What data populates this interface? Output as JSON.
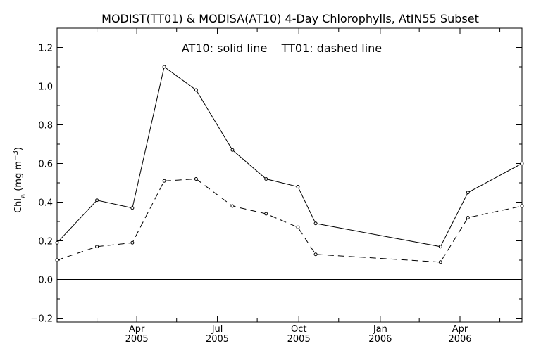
{
  "chart_data": {
    "type": "line",
    "title": "MODIST(TT01) & MODISA(AT10) 4-Day Chlorophylls, AtIN55 Subset",
    "annotation": "AT10: solid line    TT01: dashed line",
    "ylabel": "Chl_a (mg m^-3)",
    "ylabel_parts": {
      "main": "Chl",
      "sub": "a",
      "unit_open": " (mg m",
      "sup": "−3",
      "unit_close": ")"
    },
    "ylim": [
      -0.22,
      1.3
    ],
    "xlim": [
      "2005-01-01",
      "2006-06-10"
    ],
    "grid": false,
    "y_ticks": [
      {
        "value": -0.2,
        "label": "−0.2"
      },
      {
        "value": 0.0,
        "label": "0.0"
      },
      {
        "value": 0.2,
        "label": "0.2"
      },
      {
        "value": 0.4,
        "label": "0.4"
      },
      {
        "value": 0.6,
        "label": "0.6"
      },
      {
        "value": 0.8,
        "label": "0.8"
      },
      {
        "value": 1.0,
        "label": "1.0"
      },
      {
        "value": 1.2,
        "label": "1.2"
      }
    ],
    "x_major_ticks": [
      {
        "date": "2005-04-01",
        "label1": "Apr",
        "label2": "2005"
      },
      {
        "date": "2005-07-01",
        "label1": "Jul",
        "label2": "2005"
      },
      {
        "date": "2005-10-01",
        "label1": "Oct",
        "label2": "2005"
      },
      {
        "date": "2006-01-01",
        "label1": "Jan",
        "label2": "2006"
      },
      {
        "date": "2006-04-01",
        "label1": "Apr",
        "label2": "2006"
      }
    ],
    "x_minor_ticks": [
      "2005-02-15",
      "2005-05-16",
      "2005-08-15",
      "2005-11-15",
      "2006-02-14",
      "2006-05-16"
    ],
    "zero_line": 0.0,
    "series": [
      {
        "name": "AT10",
        "style": "solid",
        "color": "#000000",
        "points": [
          {
            "x": "2005-01-01",
            "y": 0.19
          },
          {
            "x": "2005-02-15",
            "y": 0.41
          },
          {
            "x": "2005-03-27",
            "y": 0.37
          },
          {
            "x": "2005-05-02",
            "y": 1.1
          },
          {
            "x": "2005-06-07",
            "y": 0.98
          },
          {
            "x": "2005-07-18",
            "y": 0.67
          },
          {
            "x": "2005-08-25",
            "y": 0.52
          },
          {
            "x": "2005-09-30",
            "y": 0.48
          },
          {
            "x": "2005-10-20",
            "y": 0.29
          },
          {
            "x": "2006-03-10",
            "y": 0.17
          },
          {
            "x": "2006-04-10",
            "y": 0.45
          },
          {
            "x": "2006-06-10",
            "y": 0.6
          }
        ]
      },
      {
        "name": "TT01",
        "style": "dashed",
        "color": "#000000",
        "points": [
          {
            "x": "2005-01-01",
            "y": 0.1
          },
          {
            "x": "2005-02-15",
            "y": 0.17
          },
          {
            "x": "2005-03-27",
            "y": 0.19
          },
          {
            "x": "2005-05-02",
            "y": 0.51
          },
          {
            "x": "2005-06-07",
            "y": 0.52
          },
          {
            "x": "2005-07-18",
            "y": 0.38
          },
          {
            "x": "2005-08-25",
            "y": 0.34
          },
          {
            "x": "2005-09-30",
            "y": 0.27
          },
          {
            "x": "2005-10-20",
            "y": 0.13
          },
          {
            "x": "2006-03-10",
            "y": 0.09
          },
          {
            "x": "2006-04-10",
            "y": 0.32
          },
          {
            "x": "2006-06-10",
            "y": 0.38
          }
        ]
      }
    ]
  }
}
